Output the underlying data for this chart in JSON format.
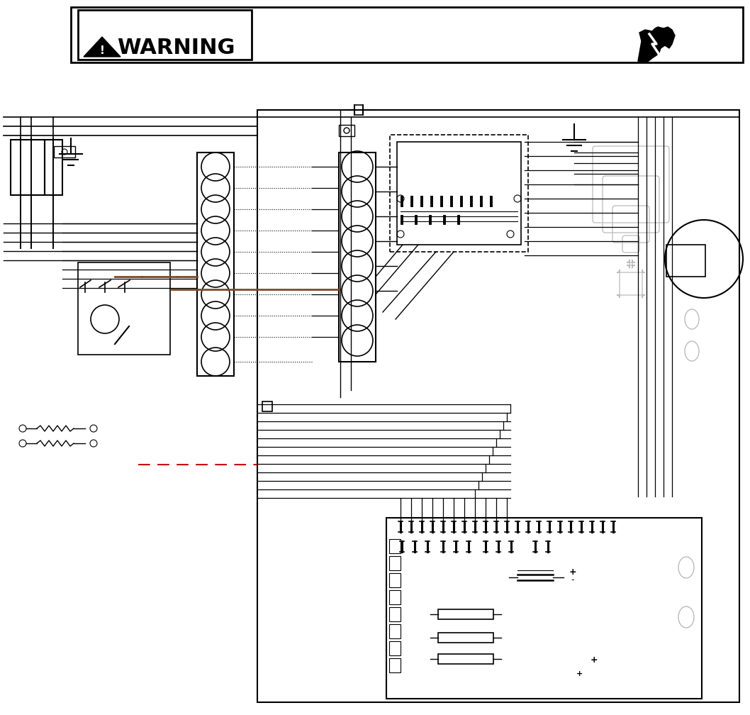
{
  "bg_color": "#ffffff",
  "lc": "#000000",
  "brown": "#7B4B2A",
  "red_dash": "#cc0000",
  "gray": "#bbbbbb",
  "fig_w": 10.58,
  "fig_h": 10.08,
  "dpi": 100
}
